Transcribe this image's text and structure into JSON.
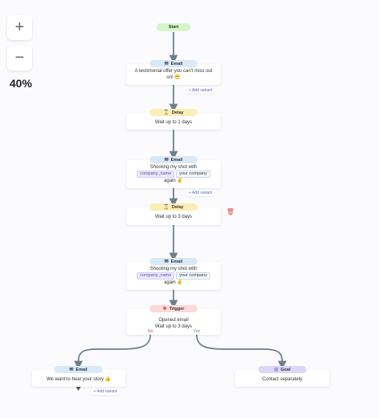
{
  "zoom": {
    "in_label": "+",
    "out_label": "−",
    "level": "40%"
  },
  "nodes": {
    "start": {
      "label": "Start"
    },
    "email1": {
      "badge": "Email",
      "text": "A testimonial offer you can't miss out on! 😁",
      "add_variant": "+ Add variant"
    },
    "delay1": {
      "badge": "Delay",
      "text": "Wait up to  1 days"
    },
    "email2": {
      "badge": "Email",
      "line1": "Shooting my shot with",
      "pill1": "company_name",
      "pill2": "your company",
      "line3": "again ✌",
      "add_variant": "+ Add variant"
    },
    "delay2": {
      "badge": "Delay",
      "text": "Wait up to  3 days"
    },
    "email3": {
      "badge": "Email",
      "line1": "Shooting my shot with",
      "pill1": "company_name",
      "pill2": "your company",
      "line3": "again ✌"
    },
    "trigger": {
      "badge": "Trigger",
      "line1": "Opened email",
      "line2": "Wait up to  3 days",
      "no_label": "No",
      "yes_label": "Yes"
    },
    "email4": {
      "badge": "Email",
      "text": "We want to hear your story 👍",
      "add_variant": "+ Add variant"
    },
    "goal": {
      "badge": "Goal",
      "text": "Contact separately"
    }
  },
  "icons": {
    "email": "envelope-icon",
    "delay": "hourglass-icon",
    "trigger": "lightning-icon",
    "goal": "target-icon",
    "delete": "trash-icon"
  },
  "colors": {
    "edge": "#6f8088",
    "no_label": "#d94a4a",
    "yes_label": "#4caf50",
    "add_variant": "#5b64c8"
  }
}
